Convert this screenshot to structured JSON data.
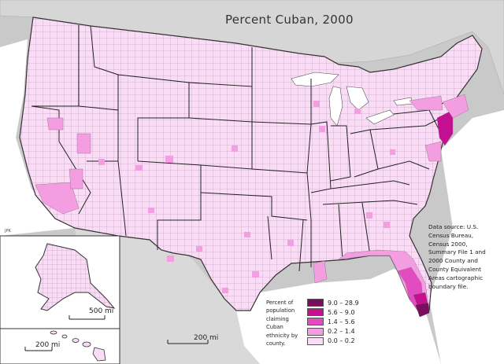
{
  "title": "Percent Cuban, 2000",
  "source_lines": [
    "Data source: U.S.",
    "Census Bureau,",
    "Census 2000,",
    "Summary File 1 and",
    "2000 County and",
    "County Equivalent",
    "Areas cartographic",
    "boundary file."
  ],
  "legend": {
    "caption_lines": [
      "Percent of",
      "population",
      "claiming",
      "Cuban",
      "ethnicity by",
      "county."
    ],
    "classes": [
      {
        "label": "9.0 – 28.9",
        "color": "#7a0d5e"
      },
      {
        "label": "5.6 – 9.0",
        "color": "#c21090"
      },
      {
        "label": "1.4 – 5.6",
        "color": "#e34bc0"
      },
      {
        "label": "0.2 – 1.4",
        "color": "#f29ee0"
      },
      {
        "label": "0.0 – 0.2",
        "color": "#fbdcf6"
      }
    ]
  },
  "scale_bars": {
    "main": "200 mi",
    "alaska": "500 mi",
    "hawaii": "200 mi"
  },
  "credit": "JPK",
  "colors": {
    "land": "#fbdcf6",
    "outside": "#c9c9c9",
    "water": "#ffffff"
  }
}
